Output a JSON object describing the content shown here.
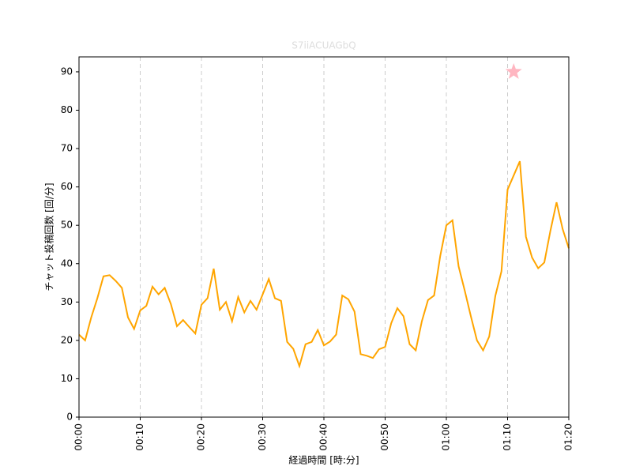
{
  "chart_data": {
    "type": "line",
    "title": "S7iiACUAGbQ",
    "xlabel": "経過時間 [時:分]",
    "ylabel": "チャット投稿回数 [回/分]",
    "x": [
      0,
      1,
      2,
      3,
      4,
      5,
      6,
      7,
      8,
      9,
      10,
      11,
      12,
      13,
      14,
      15,
      16,
      17,
      18,
      19,
      20,
      21,
      22,
      23,
      24,
      25,
      26,
      27,
      28,
      29,
      30,
      31,
      32,
      33,
      34,
      35,
      36,
      37,
      38,
      39,
      40,
      41,
      42,
      43,
      44,
      45,
      46,
      47,
      48,
      49,
      50,
      51,
      52,
      53,
      54,
      55,
      56,
      57,
      58,
      59,
      60,
      61,
      62,
      63,
      64,
      65,
      66,
      67,
      68,
      69,
      70,
      71,
      72,
      73,
      74,
      75,
      76,
      77,
      78,
      79,
      80
    ],
    "series": [
      {
        "color": "#ffa500",
        "values": [
          21.5,
          20,
          26,
          31,
          36.7,
          37,
          35.5,
          33.7,
          26,
          23,
          27.8,
          29,
          34,
          32,
          33.7,
          29.5,
          23.7,
          25.3,
          23.5,
          21.8,
          29.3,
          31,
          38.7,
          28,
          30,
          25,
          31.3,
          27.3,
          30.3,
          28,
          32,
          36,
          31,
          30.3,
          19.6,
          17.8,
          13.3,
          19,
          19.6,
          22.7,
          18.7,
          19.7,
          21.5,
          31.7,
          30.7,
          27.5,
          16.4,
          16,
          15.4,
          17.7,
          18.3,
          24.5,
          28.4,
          26.3,
          19,
          17.4,
          25,
          30.5,
          31.7,
          42,
          50,
          51.3,
          39.3,
          33,
          26.3,
          20,
          17.4,
          21,
          31.6,
          38,
          59.3,
          63,
          66.7,
          47,
          41.6,
          38.8,
          40.3,
          48.6,
          56,
          49,
          44
        ]
      }
    ],
    "marker": {
      "x": 71,
      "y": 90,
      "color": "#ffb6c1"
    },
    "xlim": [
      0,
      80
    ],
    "ylim": [
      0,
      93.9
    ],
    "xticks": [
      {
        "value": 0,
        "label": "00:00"
      },
      {
        "value": 10,
        "label": "00:10"
      },
      {
        "value": 20,
        "label": "00:20"
      },
      {
        "value": 30,
        "label": "00:30"
      },
      {
        "value": 40,
        "label": "00:40"
      },
      {
        "value": 50,
        "label": "00:50"
      },
      {
        "value": 60,
        "label": "01:00"
      },
      {
        "value": 70,
        "label": "01:10"
      },
      {
        "value": 80,
        "label": "01:20"
      }
    ],
    "yticks": [
      0,
      10,
      20,
      30,
      40,
      50,
      60,
      70,
      80,
      90
    ],
    "title_color": "#dddddd",
    "xgrid": true
  }
}
